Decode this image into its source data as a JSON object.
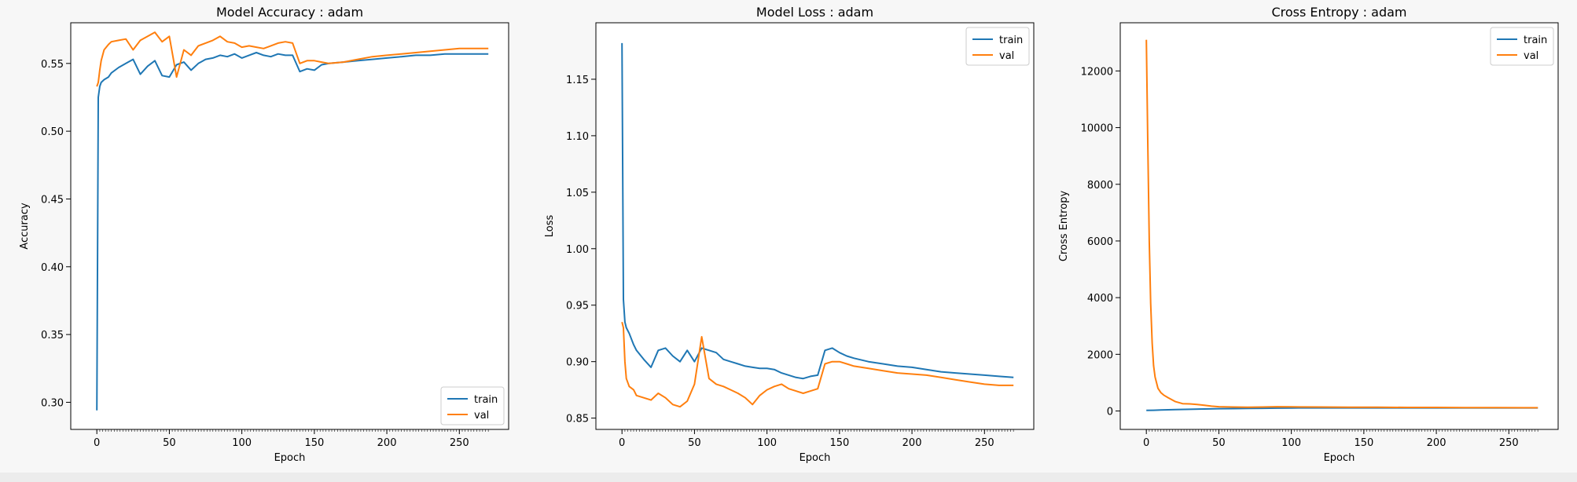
{
  "chart_data": [
    {
      "type": "line",
      "title": "Model Accuracy : adam",
      "xlabel": "Epoch",
      "ylabel": "Accuracy",
      "xlim": [
        -18,
        284
      ],
      "ylim": [
        0.28,
        0.58
      ],
      "xticks": [
        0,
        50,
        100,
        150,
        200,
        250
      ],
      "xtick_labels": [
        "0",
        "50",
        "100",
        "150",
        "200",
        "250"
      ],
      "yticks": [
        0.3,
        0.35,
        0.4,
        0.45,
        0.5,
        0.55
      ],
      "ytick_labels": [
        "0.30",
        "0.35",
        "0.40",
        "0.45",
        "0.50",
        "0.55"
      ],
      "legend": {
        "position": "lower-right",
        "entries": [
          "train",
          "val"
        ]
      },
      "series": [
        {
          "name": "train",
          "color": "#1f77b4",
          "x": [
            0,
            1,
            2,
            3,
            5,
            8,
            10,
            15,
            20,
            25,
            30,
            35,
            40,
            45,
            50,
            55,
            60,
            65,
            70,
            75,
            80,
            85,
            90,
            95,
            100,
            105,
            110,
            115,
            120,
            125,
            130,
            135,
            140,
            145,
            150,
            155,
            160,
            170,
            180,
            190,
            200,
            210,
            220,
            230,
            240,
            250,
            260,
            270
          ],
          "y": [
            0.294,
            0.525,
            0.533,
            0.536,
            0.538,
            0.54,
            0.543,
            0.547,
            0.55,
            0.553,
            0.542,
            0.548,
            0.552,
            0.541,
            0.54,
            0.549,
            0.551,
            0.545,
            0.55,
            0.553,
            0.554,
            0.556,
            0.555,
            0.557,
            0.554,
            0.556,
            0.558,
            0.556,
            0.555,
            0.557,
            0.556,
            0.556,
            0.544,
            0.546,
            0.545,
            0.549,
            0.55,
            0.551,
            0.552,
            0.553,
            0.554,
            0.555,
            0.556,
            0.556,
            0.557,
            0.557,
            0.557,
            0.557
          ]
        },
        {
          "name": "val",
          "color": "#ff7f0e",
          "x": [
            0,
            1,
            2,
            3,
            5,
            8,
            10,
            15,
            20,
            25,
            30,
            35,
            40,
            45,
            50,
            55,
            60,
            65,
            70,
            75,
            80,
            85,
            90,
            95,
            100,
            105,
            110,
            115,
            120,
            125,
            130,
            135,
            140,
            145,
            150,
            155,
            160,
            170,
            180,
            190,
            200,
            210,
            220,
            230,
            240,
            250,
            260,
            270
          ],
          "y": [
            0.533,
            0.536,
            0.545,
            0.552,
            0.56,
            0.564,
            0.566,
            0.567,
            0.568,
            0.56,
            0.567,
            0.57,
            0.573,
            0.566,
            0.57,
            0.54,
            0.56,
            0.556,
            0.563,
            0.565,
            0.567,
            0.57,
            0.566,
            0.565,
            0.562,
            0.563,
            0.562,
            0.561,
            0.563,
            0.565,
            0.566,
            0.565,
            0.55,
            0.552,
            0.552,
            0.551,
            0.55,
            0.551,
            0.553,
            0.555,
            0.556,
            0.557,
            0.558,
            0.559,
            0.56,
            0.561,
            0.561,
            0.561
          ]
        }
      ]
    },
    {
      "type": "line",
      "title": "Model Loss : adam",
      "xlabel": "Epoch",
      "ylabel": "Loss",
      "xlim": [
        -18,
        284
      ],
      "ylim": [
        0.84,
        1.2
      ],
      "xticks": [
        0,
        50,
        100,
        150,
        200,
        250
      ],
      "xtick_labels": [
        "0",
        "50",
        "100",
        "150",
        "200",
        "250"
      ],
      "yticks": [
        0.85,
        0.9,
        0.95,
        1.0,
        1.05,
        1.1,
        1.15
      ],
      "ytick_labels": [
        "0.85",
        "0.90",
        "0.95",
        "1.00",
        "1.05",
        "1.10",
        "1.15"
      ],
      "legend": {
        "position": "upper-right",
        "entries": [
          "train",
          "val"
        ]
      },
      "series": [
        {
          "name": "train",
          "color": "#1f77b4",
          "x": [
            0,
            1,
            2,
            3,
            5,
            8,
            10,
            15,
            20,
            25,
            30,
            35,
            40,
            45,
            50,
            55,
            60,
            65,
            70,
            75,
            80,
            85,
            90,
            95,
            100,
            105,
            110,
            115,
            120,
            125,
            130,
            135,
            140,
            145,
            150,
            155,
            160,
            170,
            180,
            190,
            200,
            210,
            220,
            230,
            240,
            250,
            260,
            270
          ],
          "y": [
            1.182,
            0.955,
            0.935,
            0.93,
            0.925,
            0.915,
            0.91,
            0.902,
            0.895,
            0.91,
            0.912,
            0.905,
            0.9,
            0.91,
            0.9,
            0.912,
            0.91,
            0.908,
            0.902,
            0.9,
            0.898,
            0.896,
            0.895,
            0.894,
            0.894,
            0.893,
            0.89,
            0.888,
            0.886,
            0.885,
            0.887,
            0.888,
            0.91,
            0.912,
            0.908,
            0.905,
            0.903,
            0.9,
            0.898,
            0.896,
            0.895,
            0.893,
            0.891,
            0.89,
            0.889,
            0.888,
            0.887,
            0.886
          ]
        },
        {
          "name": "val",
          "color": "#ff7f0e",
          "x": [
            0,
            1,
            2,
            3,
            5,
            8,
            10,
            15,
            20,
            25,
            30,
            35,
            40,
            45,
            50,
            55,
            60,
            65,
            70,
            75,
            80,
            85,
            90,
            95,
            100,
            105,
            110,
            115,
            120,
            125,
            130,
            135,
            140,
            145,
            150,
            155,
            160,
            170,
            180,
            190,
            200,
            210,
            220,
            230,
            240,
            250,
            260,
            270
          ],
          "y": [
            0.935,
            0.93,
            0.9,
            0.885,
            0.878,
            0.875,
            0.87,
            0.868,
            0.866,
            0.872,
            0.868,
            0.862,
            0.86,
            0.865,
            0.88,
            0.922,
            0.885,
            0.88,
            0.878,
            0.875,
            0.872,
            0.868,
            0.862,
            0.87,
            0.875,
            0.878,
            0.88,
            0.876,
            0.874,
            0.872,
            0.874,
            0.876,
            0.898,
            0.9,
            0.9,
            0.898,
            0.896,
            0.894,
            0.892,
            0.89,
            0.889,
            0.888,
            0.886,
            0.884,
            0.882,
            0.88,
            0.879,
            0.879
          ]
        }
      ]
    },
    {
      "type": "line",
      "title": "Cross Entropy : adam",
      "xlabel": "Epoch",
      "ylabel": "Cross Entropy",
      "xlim": [
        -18,
        284
      ],
      "ylim": [
        -650,
        13700
      ],
      "xticks": [
        0,
        50,
        100,
        150,
        200,
        250
      ],
      "xtick_labels": [
        "0",
        "50",
        "100",
        "150",
        "200",
        "250"
      ],
      "yticks": [
        0,
        2000,
        4000,
        6000,
        8000,
        10000,
        12000
      ],
      "ytick_labels": [
        "0",
        "2000",
        "4000",
        "6000",
        "8000",
        "10000",
        "12000"
      ],
      "legend": {
        "position": "upper-right",
        "entries": [
          "train",
          "val"
        ]
      },
      "series": [
        {
          "name": "train",
          "color": "#1f77b4",
          "x": [
            0,
            5,
            10,
            20,
            30,
            40,
            50,
            60,
            70,
            80,
            90,
            100,
            120,
            140,
            160,
            180,
            200,
            220,
            240,
            260,
            270
          ],
          "y": [
            20,
            25,
            35,
            50,
            60,
            70,
            80,
            85,
            90,
            95,
            100,
            105,
            108,
            110,
            110,
            110,
            110,
            110,
            110,
            110,
            110
          ]
        },
        {
          "name": "val",
          "color": "#ff7f0e",
          "x": [
            0,
            1,
            2,
            3,
            4,
            5,
            6,
            8,
            10,
            12,
            15,
            20,
            25,
            30,
            35,
            40,
            45,
            50,
            60,
            70,
            80,
            90,
            100,
            120,
            140,
            160,
            180,
            200,
            220,
            240,
            260,
            270
          ],
          "y": [
            13100,
            9500,
            6000,
            3800,
            2400,
            1600,
            1200,
            800,
            650,
            560,
            470,
            330,
            260,
            250,
            230,
            200,
            170,
            150,
            140,
            130,
            140,
            150,
            145,
            140,
            135,
            130,
            125,
            125,
            120,
            120,
            115,
            115
          ]
        }
      ]
    }
  ]
}
